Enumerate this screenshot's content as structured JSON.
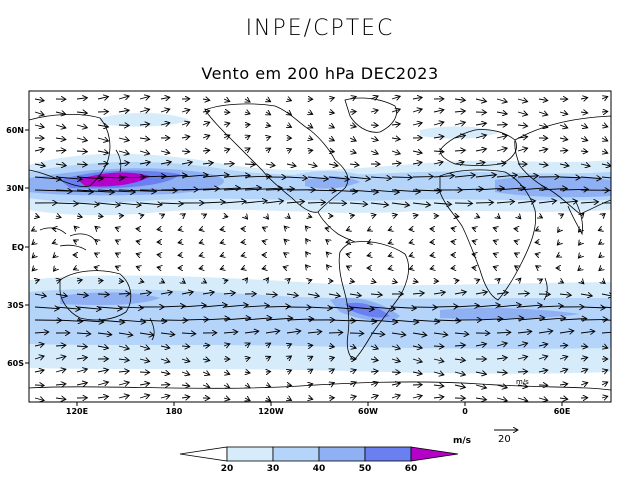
{
  "header": {
    "organization": "INPE/CPTEC",
    "map_title": "Vento em 200 hPa DEC2023"
  },
  "map": {
    "lat_labels": [
      "60N",
      "30N",
      "EQ",
      "30S",
      "60S"
    ],
    "lon_labels": [
      "120E",
      "180",
      "120W",
      "60W",
      "0",
      "60E"
    ],
    "inner_label": "m/s"
  },
  "legend": {
    "unit": "m/s",
    "ref_vector": "20",
    "colorbar_ticks": [
      "20",
      "30",
      "40",
      "50",
      "60"
    ],
    "colors": [
      "#ffffff",
      "#d6ecfb",
      "#b4d4fa",
      "#8fb1f4",
      "#6a7ff0",
      "#b400c8"
    ]
  }
}
